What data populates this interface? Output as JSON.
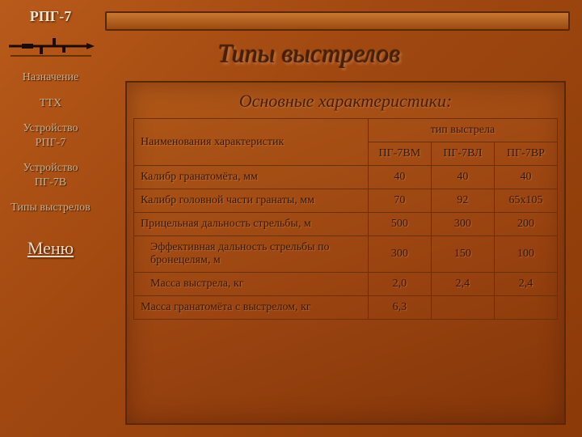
{
  "logo_title": "РПГ-7",
  "nav": [
    "Назначение",
    "ТТХ",
    "Устройство РПГ-7",
    "Устройство ПГ-7В",
    "Типы выстрелов"
  ],
  "menu_label": "Меню",
  "main_title": "Типы выстрелов",
  "sub_title": "Основные характеристики:",
  "table": {
    "row_header": "Наименования характеристик",
    "group_header": "тип выстрела",
    "columns": [
      "ПГ-7ВМ",
      "ПГ-7ВЛ",
      "ПГ-7ВР"
    ],
    "rows": [
      {
        "label": "Калибр гранатомёта, мм",
        "indent": false,
        "cells": [
          "40",
          "40",
          "40"
        ]
      },
      {
        "label": "Калибр головной части гранаты, мм",
        "indent": false,
        "cells": [
          "70",
          "92",
          "65х105"
        ]
      },
      {
        "label": "Прицельная дальность стрельбы, м",
        "indent": false,
        "cells": [
          "500",
          "300",
          "200"
        ]
      },
      {
        "label": "Эффективная дальность стрельбы по бронецелям, м",
        "indent": true,
        "cells": [
          "300",
          "150",
          "100"
        ]
      },
      {
        "label": "Масса выстрела, кг",
        "indent": true,
        "cells": [
          "2,0",
          "2,4",
          "2,4"
        ]
      },
      {
        "label": "Масса гранатомёта с выстрелом, кг",
        "indent": false,
        "cells": [
          "6,3",
          "",
          ""
        ]
      }
    ]
  },
  "colors": {
    "bg_grad_a": "#b85a1a",
    "bg_grad_b": "#8b3a08",
    "panel_border": "#5a2805",
    "cell_border": "#6a3008",
    "text_dark": "#4a1f05",
    "text_light": "#f5e6d0",
    "nav_text": "#c8b090"
  }
}
